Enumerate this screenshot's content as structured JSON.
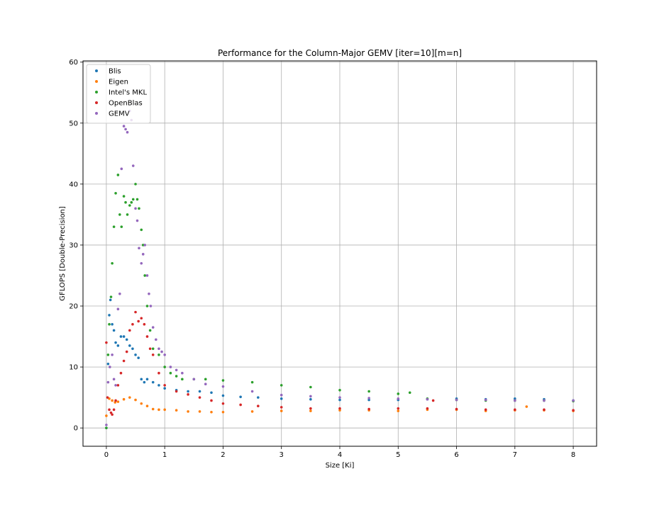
{
  "chart_data": {
    "type": "scatter",
    "title": "Performance for the Column-Major GEMV [iter=10][m=n]",
    "xlabel": "Size [Ki]",
    "ylabel": "GFLOPS [Double-Precision]",
    "xlim": [
      -0.4,
      8.4
    ],
    "ylim": [
      -3,
      60.2
    ],
    "xticks": [
      0,
      1,
      2,
      3,
      4,
      5,
      6,
      7,
      8
    ],
    "yticks": [
      0,
      10,
      20,
      30,
      40,
      50,
      60
    ],
    "grid": true,
    "legend_position": "top-left",
    "series": [
      {
        "name": "Blis",
        "color": "#1f77b4",
        "x": [
          0,
          0.03,
          0.05,
          0.07,
          0.1,
          0.13,
          0.16,
          0.2,
          0.25,
          0.3,
          0.35,
          0.4,
          0.45,
          0.5,
          0.55,
          0.6,
          0.65,
          0.7,
          0.8,
          0.9,
          1.0,
          1.2,
          1.4,
          1.6,
          1.8,
          2.0,
          2.3,
          2.6,
          3.0,
          3.5,
          4.0,
          4.5,
          5.0,
          5.5,
          6.0,
          6.5,
          7.0,
          7.5,
          8.0
        ],
        "y": [
          0,
          10.5,
          18.5,
          21,
          17,
          16,
          14,
          13.5,
          15,
          15,
          14.5,
          13.5,
          13,
          12,
          11.5,
          8,
          7.5,
          8,
          7.5,
          7,
          6.5,
          6.2,
          6,
          6,
          5.8,
          5.3,
          5.1,
          5,
          4.8,
          4.7,
          4.6,
          4.6,
          4.6,
          4.7,
          4.8,
          4.7,
          4.8,
          4.7,
          4.5
        ]
      },
      {
        "name": "Eigen",
        "color": "#ff7f0e",
        "x": [
          0,
          0.05,
          0.1,
          0.15,
          0.2,
          0.3,
          0.4,
          0.5,
          0.6,
          0.7,
          0.8,
          0.9,
          1.0,
          1.2,
          1.4,
          1.6,
          1.8,
          2.0,
          2.5,
          3.0,
          3.5,
          4.0,
          4.5,
          5.0,
          5.5,
          6.0,
          6.5,
          7.0,
          7.2,
          7.5,
          8.0
        ],
        "y": [
          2,
          4.8,
          4.5,
          4.2,
          4.3,
          4.7,
          5,
          4.6,
          4,
          3.6,
          3.1,
          3,
          3,
          2.9,
          2.7,
          2.7,
          2.6,
          2.6,
          2.7,
          2.8,
          2.8,
          2.9,
          2.9,
          2.8,
          3,
          3,
          2.8,
          2.9,
          3.5,
          2.9,
          2.8
        ]
      },
      {
        "name": "Intel's MKL",
        "color": "#2ca02c",
        "x": [
          0,
          0.03,
          0.05,
          0.08,
          0.1,
          0.13,
          0.16,
          0.2,
          0.23,
          0.26,
          0.3,
          0.33,
          0.36,
          0.4,
          0.43,
          0.46,
          0.5,
          0.53,
          0.56,
          0.6,
          0.63,
          0.66,
          0.7,
          0.75,
          0.8,
          0.9,
          1.0,
          1.1,
          1.2,
          1.3,
          1.5,
          1.7,
          2.0,
          2.5,
          3.0,
          3.5,
          4.0,
          4.5,
          5.0,
          5.2,
          5.5,
          6.0,
          6.5,
          7.0,
          7.5,
          8.0
        ],
        "y": [
          0,
          12,
          17,
          21.5,
          27,
          33,
          38.5,
          41.5,
          35,
          33,
          38,
          37,
          35,
          36.5,
          37,
          37.5,
          40,
          37.5,
          36,
          32.5,
          30,
          25,
          20,
          16,
          13,
          12,
          10,
          9,
          8.5,
          8,
          8,
          8,
          7.8,
          7.5,
          7,
          6.7,
          6.2,
          6,
          5.6,
          5.8,
          4.8,
          4.6,
          4.5,
          4.5,
          4.5,
          4.4
        ]
      },
      {
        "name": "OpenBlas",
        "color": "#d62728",
        "x": [
          0,
          0.02,
          0.05,
          0.08,
          0.1,
          0.13,
          0.16,
          0.2,
          0.25,
          0.3,
          0.35,
          0.4,
          0.45,
          0.5,
          0.55,
          0.6,
          0.65,
          0.7,
          0.75,
          0.8,
          0.9,
          1.0,
          1.2,
          1.4,
          1.6,
          1.8,
          2.0,
          2.3,
          2.6,
          3.0,
          3.5,
          4.0,
          4.5,
          5.0,
          5.5,
          5.6,
          6.0,
          6.5,
          7.0,
          7.5,
          8.0
        ],
        "y": [
          14,
          5,
          3,
          2.5,
          2.2,
          3,
          4.5,
          7,
          9,
          11,
          12.5,
          16,
          17,
          19,
          17.5,
          18,
          17,
          15,
          13,
          12,
          9,
          7,
          6,
          5.5,
          5,
          4.5,
          4,
          3.8,
          3.6,
          3.4,
          3.2,
          3.2,
          3.1,
          3.2,
          3.2,
          4.5,
          3.1,
          3,
          3,
          3,
          2.9
        ]
      },
      {
        "name": "GEMV",
        "color": "#9467bd",
        "x": [
          0,
          0.03,
          0.06,
          0.1,
          0.13,
          0.16,
          0.2,
          0.23,
          0.26,
          0.3,
          0.33,
          0.36,
          0.4,
          0.43,
          0.46,
          0.5,
          0.53,
          0.56,
          0.6,
          0.63,
          0.66,
          0.7,
          0.73,
          0.76,
          0.8,
          0.85,
          0.9,
          0.95,
          1.0,
          1.1,
          1.2,
          1.3,
          1.5,
          1.7,
          2.0,
          2.5,
          3.0,
          3.5,
          4.0,
          4.5,
          5.0,
          5.5,
          6.0,
          6.5,
          7.0,
          7.5,
          8.0
        ],
        "y": [
          0.5,
          7.5,
          10,
          12,
          8,
          7,
          19.5,
          22,
          42.5,
          49.5,
          49,
          48.5,
          52,
          50.5,
          43,
          36,
          34,
          29.5,
          27,
          28.5,
          30,
          25,
          22,
          20,
          16.5,
          14.5,
          13,
          12.5,
          12,
          10,
          9.5,
          9,
          8,
          7.2,
          6.8,
          6,
          5.4,
          5.2,
          5,
          4.9,
          4.8,
          4.7,
          4.6,
          4.6,
          4.5,
          4.5,
          4.5
        ]
      }
    ]
  }
}
